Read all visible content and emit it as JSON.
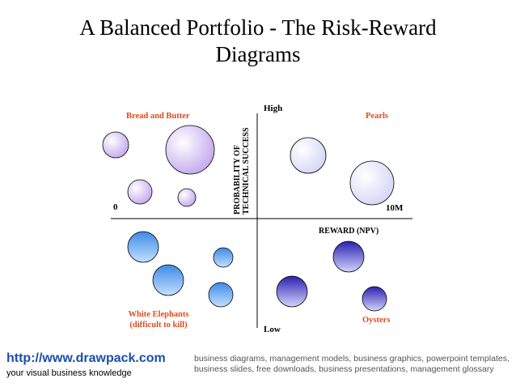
{
  "title_line1": "A Balanced Portfolio - The Risk-Reward",
  "title_line2": "Diagrams",
  "axes": {
    "y_high": "High",
    "y_low": "Low",
    "y_label_line1": "PROBABILITY OF",
    "y_label_line2": "TECHNICAL SUCCESS",
    "x_zero": "0",
    "x_max": "10M",
    "x_label": "REWARD (NPV)"
  },
  "quadrants": {
    "top_left": "Bread and Butter",
    "top_right": "Pearls",
    "bottom_left_line1": "White Elephants",
    "bottom_left_line2": "(difficult to kill)",
    "bottom_right": "Oysters"
  },
  "colors": {
    "quadrant_label": "#e24a1b",
    "bubble_purple": "#c9b2ef",
    "bubble_lavender": "#d9dcf7",
    "bubble_blue": "#5aa2ee",
    "bubble_navy": "#3a36c2"
  },
  "footer": {
    "url": "http://www.drawpack.com",
    "tagline": "your visual business knowledge",
    "keywords": "business diagrams, management models, business graphics, powerpoint templates, business slides, free downloads, business presentations, management glossary"
  }
}
